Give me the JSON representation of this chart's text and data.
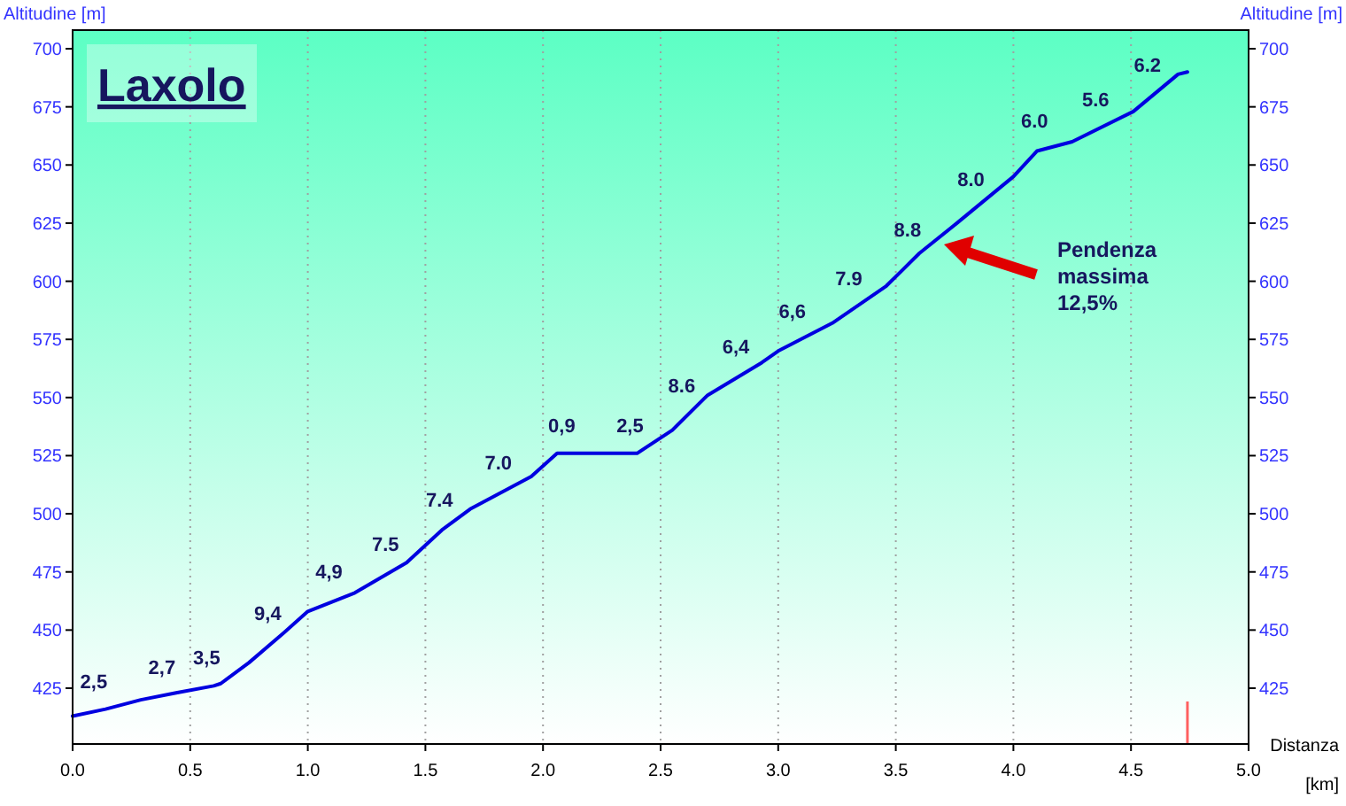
{
  "chart_data": {
    "type": "line",
    "title": "Laxolo",
    "ylabel": "Altitudine [m]",
    "y2label": "Altitudine [m]",
    "xlabel": "Distanza [km]",
    "x": [
      0,
      0.14,
      0.29,
      0.44,
      0.6,
      0.63,
      0.75,
      0.9,
      1.0,
      1.2,
      1.42,
      1.57,
      1.69,
      1.95,
      2.06,
      2.17,
      2.4,
      2.55,
      2.7,
      2.93,
      3.0,
      3.23,
      3.46,
      3.6,
      3.76,
      4.0,
      4.1,
      4.25,
      4.51,
      4.7,
      4.74
    ],
    "series": [
      {
        "color": "#0000e0",
        "values": [
          413,
          416,
          420,
          423,
          426,
          427,
          436,
          449,
          458,
          466,
          479,
          493,
          502,
          516,
          526,
          526,
          526,
          536,
          551,
          565,
          570,
          582,
          598,
          612,
          625,
          645,
          656,
          660,
          673,
          689,
          690
        ]
      }
    ],
    "xlim": [
      0,
      5
    ],
    "xticks": [
      {
        "value": 0,
        "label": "0.0"
      },
      {
        "value": 0.5,
        "label": "0.5"
      },
      {
        "value": 1,
        "label": "1.0"
      },
      {
        "value": 1.5,
        "label": "1.5"
      },
      {
        "value": 2,
        "label": "2.0"
      },
      {
        "value": 2.5,
        "label": "2.5"
      },
      {
        "value": 3,
        "label": "3.0"
      },
      {
        "value": 3.5,
        "label": "3.5"
      },
      {
        "value": 4,
        "label": "4.0"
      },
      {
        "value": 4.5,
        "label": "4.5"
      },
      {
        "value": 5,
        "label": "5.0"
      }
    ],
    "ylim": [
      401,
      708
    ],
    "yticks": [
      425,
      450,
      475,
      500,
      525,
      550,
      575,
      600,
      625,
      650,
      675,
      700
    ],
    "y2lim": [
      401,
      708
    ],
    "y2ticks": [
      425,
      450,
      475,
      500,
      525,
      550,
      575,
      600,
      625,
      650,
      675,
      700
    ],
    "grid": "x",
    "marker": "none",
    "line_style": "solid",
    "annotations": [
      {
        "text": "2,5",
        "x": 0.12,
        "y": 416
      },
      {
        "text": "2,7",
        "x": 0.41,
        "y": 422
      },
      {
        "text": "3,5",
        "x": 0.6,
        "y": 426
      },
      {
        "text": "9,4",
        "x": 0.86,
        "y": 445
      },
      {
        "text": "4,9",
        "x": 1.12,
        "y": 463
      },
      {
        "text": "7.5",
        "x": 1.36,
        "y": 475
      },
      {
        "text": "7.4",
        "x": 1.59,
        "y": 494
      },
      {
        "text": "7.0",
        "x": 1.84,
        "y": 510
      },
      {
        "text": "0,9",
        "x": 2.11,
        "y": 526
      },
      {
        "text": "2,5",
        "x": 2.4,
        "y": 526
      },
      {
        "text": "8.6",
        "x": 2.62,
        "y": 543
      },
      {
        "text": "6,4",
        "x": 2.85,
        "y": 560
      },
      {
        "text": "6,6",
        "x": 3.09,
        "y": 575
      },
      {
        "text": "7.9",
        "x": 3.33,
        "y": 589
      },
      {
        "text": "8.8",
        "x": 3.58,
        "y": 610
      },
      {
        "text": "8.0",
        "x": 3.85,
        "y": 632
      },
      {
        "text": "6.0",
        "x": 4.12,
        "y": 657
      },
      {
        "text": "5.6",
        "x": 4.38,
        "y": 666
      },
      {
        "text": "6.2",
        "x": 4.6,
        "y": 681
      },
      "Pendenza massima 12,5%"
    ]
  }
}
